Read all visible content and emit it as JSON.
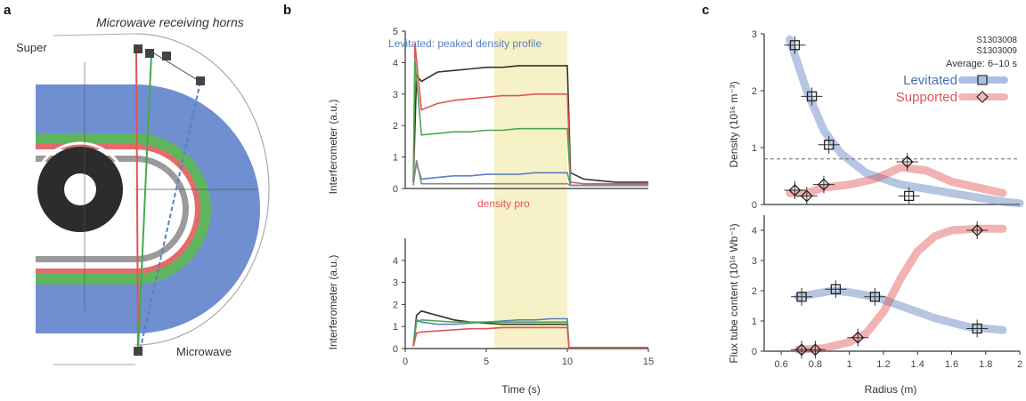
{
  "panel_a": {
    "letter": "a",
    "horns_label": "Microwave receiving horns",
    "super_label": "Super",
    "microwave_label": "Microwave",
    "colors": {
      "blue": "#5b7fbf",
      "green": "#4aa84a",
      "red": "#e05555",
      "core": "#2c2c2c",
      "ring_gray": "#8a8a8a"
    }
  },
  "panel_b": {
    "letter": "b",
    "top_annotation_levitated": "Levitated: peaked density profile",
    "top_annotation_supported": "density pro",
    "ylabel": "Interferometer (a.u.)",
    "xlabel": "Time (s)",
    "highlight_color": "#f7f1c8"
  },
  "panel_c": {
    "letter": "c",
    "legend": {
      "levitated": "Levitated",
      "supported": "Supported",
      "average": "Average: 6–10 s",
      "shot1": "S1303008",
      "shot2": "S1303009"
    },
    "ylabel_top": "Density (10¹⁶ m⁻³)",
    "ylabel_bottom": "Flux tube content (10¹⁶ Wb⁻¹)",
    "xlabel": "Radius (m)"
  },
  "chart_data": [
    {
      "type": "line",
      "panel": "b-top",
      "x_range": [
        0,
        15
      ],
      "ylim": [
        0,
        5
      ],
      "yticks": [
        0,
        1,
        2,
        3,
        4,
        5
      ],
      "highlight_range": [
        5.5,
        10
      ],
      "series": [
        {
          "color": "#333333",
          "x": [
            0.5,
            0.7,
            1,
            2,
            3,
            4,
            5,
            6,
            7,
            8,
            9,
            10,
            10.2,
            11,
            12,
            13,
            14,
            15
          ],
          "y": [
            0.2,
            3.6,
            3.4,
            3.7,
            3.75,
            3.8,
            3.85,
            3.85,
            3.9,
            3.9,
            3.9,
            3.9,
            0.5,
            0.3,
            0.25,
            0.2,
            0.2,
            0.2
          ]
        },
        {
          "color": "#e05555",
          "x": [
            0.5,
            0.6,
            1,
            2,
            3,
            4,
            5,
            6,
            7,
            8,
            9,
            10,
            10.2,
            11,
            12,
            13,
            14,
            15
          ],
          "y": [
            0.2,
            4.6,
            2.5,
            2.7,
            2.8,
            2.85,
            2.9,
            2.95,
            2.95,
            3.0,
            3.0,
            3.0,
            0.2,
            0.15,
            0.15,
            0.15,
            0.15,
            0.15
          ]
        },
        {
          "color": "#4aa84a",
          "x": [
            0.5,
            0.6,
            1,
            2,
            3,
            4,
            5,
            6,
            7,
            8,
            9,
            10,
            10.2,
            11,
            12,
            13,
            14,
            15
          ],
          "y": [
            0.2,
            4.1,
            1.7,
            1.75,
            1.8,
            1.8,
            1.85,
            1.85,
            1.9,
            1.9,
            1.9,
            1.9,
            0.1,
            0.1,
            0.1,
            0.1,
            0.1,
            0.1
          ]
        },
        {
          "color": "#5b7fbf",
          "x": [
            0.5,
            0.7,
            1,
            2,
            3,
            4,
            5,
            6,
            7,
            8,
            9,
            10,
            10.2,
            11,
            12,
            13,
            14,
            15
          ],
          "y": [
            0.2,
            0.8,
            0.3,
            0.35,
            0.4,
            0.4,
            0.45,
            0.45,
            0.45,
            0.5,
            0.5,
            0.5,
            0.1,
            0.1,
            0.1,
            0.1,
            0.1,
            0.1
          ]
        },
        {
          "color": "#888888",
          "x": [
            0.5,
            0.7,
            1,
            2,
            3,
            4,
            5,
            6,
            7,
            8,
            9,
            10,
            10.2,
            11,
            12,
            13,
            14,
            15
          ],
          "y": [
            0.1,
            0.9,
            0.15,
            0.15,
            0.15,
            0.15,
            0.15,
            0.15,
            0.15,
            0.15,
            0.15,
            0.15,
            0.1,
            0.1,
            0.1,
            0.1,
            0.1,
            0.1
          ]
        }
      ]
    },
    {
      "type": "line",
      "panel": "b-bottom",
      "xlabel": "Time (s)",
      "x_range": [
        0,
        15
      ],
      "xticks": [
        0,
        5,
        10,
        15
      ],
      "ylim": [
        0,
        5
      ],
      "yticks": [
        0,
        1,
        2,
        3,
        4
      ],
      "highlight_range": [
        5.5,
        10
      ],
      "series": [
        {
          "color": "#333333",
          "x": [
            0.5,
            0.7,
            1,
            2,
            3,
            4,
            5,
            6,
            7,
            8,
            9,
            10,
            10.1,
            15
          ],
          "y": [
            0.1,
            1.5,
            1.7,
            1.5,
            1.3,
            1.2,
            1.15,
            1.1,
            1.1,
            1.1,
            1.1,
            1.1,
            0.05,
            0.05
          ]
        },
        {
          "color": "#5b7fbf",
          "x": [
            0.5,
            0.7,
            1,
            2,
            3,
            4,
            5,
            6,
            7,
            8,
            9,
            10,
            10.1,
            15
          ],
          "y": [
            0.1,
            1.3,
            1.2,
            1.1,
            1.1,
            1.15,
            1.2,
            1.25,
            1.3,
            1.3,
            1.35,
            1.35,
            0.05,
            0.05
          ]
        },
        {
          "color": "#4aa84a",
          "x": [
            0.5,
            0.7,
            1,
            2,
            3,
            4,
            5,
            6,
            7,
            8,
            9,
            10,
            10.1,
            15
          ],
          "y": [
            0.1,
            1.2,
            1.3,
            1.25,
            1.2,
            1.2,
            1.2,
            1.2,
            1.2,
            1.2,
            1.2,
            1.2,
            0.05,
            0.05
          ]
        },
        {
          "color": "#e05555",
          "x": [
            0.5,
            0.7,
            1,
            2,
            3,
            4,
            5,
            6,
            7,
            8,
            9,
            10,
            10.1,
            15
          ],
          "y": [
            0.1,
            0.7,
            0.75,
            0.8,
            0.85,
            0.9,
            0.9,
            0.95,
            0.95,
            0.95,
            0.95,
            0.95,
            0.05,
            0.05
          ]
        }
      ]
    },
    {
      "type": "scatter",
      "panel": "c-top",
      "x_range": [
        0.5,
        2.0
      ],
      "ylim": [
        0,
        3
      ],
      "yticks": [
        0,
        1,
        2,
        3
      ],
      "dashed_y": 0.8,
      "series": [
        {
          "name": "Levitated",
          "color": "#5b7fbf",
          "marker": "square",
          "x": [
            0.68,
            0.78,
            0.88,
            1.35
          ],
          "y": [
            2.8,
            1.9,
            1.05,
            0.15
          ],
          "fit_x": [
            0.65,
            0.75,
            0.85,
            0.95,
            1.1,
            1.3,
            1.5,
            1.7,
            1.9,
            2.0
          ],
          "fit_y": [
            2.9,
            2.0,
            1.3,
            0.9,
            0.55,
            0.35,
            0.25,
            0.15,
            0.05,
            0.02
          ]
        },
        {
          "name": "Supported",
          "color": "#e05555",
          "marker": "diamond",
          "x": [
            0.68,
            0.75,
            0.85,
            1.34
          ],
          "y": [
            0.25,
            0.15,
            0.35,
            0.75
          ],
          "fit_x": [
            0.65,
            0.75,
            0.85,
            1.0,
            1.15,
            1.3,
            1.45,
            1.6,
            1.75,
            1.9
          ],
          "fit_y": [
            0.2,
            0.2,
            0.3,
            0.35,
            0.45,
            0.65,
            0.6,
            0.4,
            0.3,
            0.2
          ]
        }
      ]
    },
    {
      "type": "scatter",
      "panel": "c-bottom",
      "xlabel": "Radius (m)",
      "x_range": [
        0.5,
        2.0
      ],
      "xticks": [
        0.6,
        0.8,
        1.0,
        1.2,
        1.4,
        1.6,
        1.8,
        2.0
      ],
      "ylim": [
        0,
        4.5
      ],
      "yticks": [
        0,
        1,
        2,
        3,
        4
      ],
      "series": [
        {
          "name": "Levitated",
          "color": "#5b7fbf",
          "marker": "square",
          "x": [
            0.72,
            0.92,
            1.15,
            1.75
          ],
          "y": [
            1.8,
            2.05,
            1.8,
            0.75
          ],
          "fit_x": [
            0.7,
            0.8,
            0.9,
            1.0,
            1.15,
            1.3,
            1.5,
            1.7,
            1.9
          ],
          "fit_y": [
            1.8,
            1.9,
            2.0,
            1.95,
            1.8,
            1.5,
            1.1,
            0.8,
            0.7
          ]
        },
        {
          "name": "Supported",
          "color": "#e05555",
          "marker": "diamond",
          "x": [
            0.72,
            0.8,
            1.05,
            1.75
          ],
          "y": [
            0.05,
            0.05,
            0.45,
            4.0
          ],
          "fit_x": [
            0.7,
            0.85,
            1.0,
            1.1,
            1.2,
            1.3,
            1.4,
            1.5,
            1.6,
            1.75,
            1.9
          ],
          "fit_y": [
            0.05,
            0.1,
            0.3,
            0.6,
            1.3,
            2.4,
            3.3,
            3.8,
            4.0,
            4.05,
            4.05
          ]
        }
      ]
    }
  ]
}
